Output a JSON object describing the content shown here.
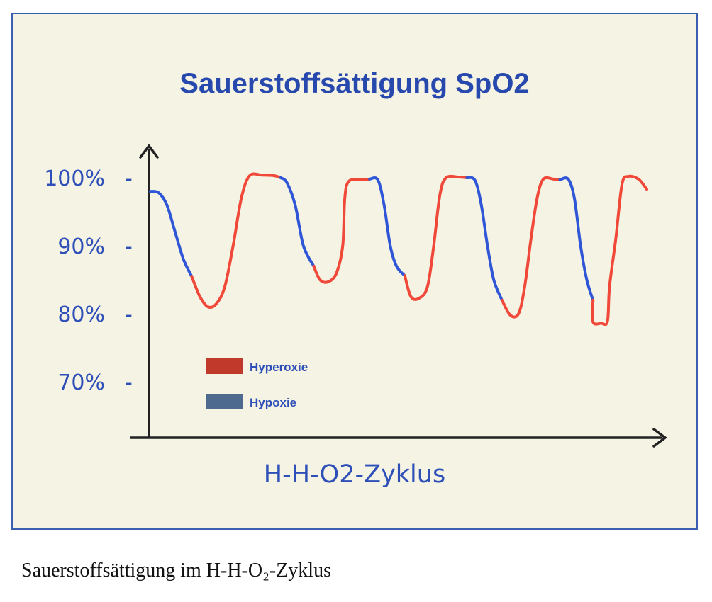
{
  "caption": "Sauerstoffsättigung im H-H-O₂-Zyklus",
  "colors": {
    "hyperoxie": "#f0493a",
    "hypoxie": "#2e56d6",
    "legend_hyperoxie": "#c0392b",
    "legend_hypoxie": "#4f6a8f",
    "axis": "#222222",
    "background": "#f5f3e4",
    "frame": "#3a5fb0"
  },
  "chart_data": {
    "type": "line",
    "title": "Sauerstoffsättigung SpO2",
    "xlabel": "H-H-O2-Zyklus",
    "ylabel": "",
    "ylim": [
      62,
      108
    ],
    "yticks": [
      {
        "value": 100,
        "label": "100%"
      },
      {
        "value": 90,
        "label": "90%"
      },
      {
        "value": 80,
        "label": "80%"
      },
      {
        "value": 70,
        "label": "70%"
      }
    ],
    "xlim": [
      0,
      24
    ],
    "grid": false,
    "legend_position": "lower-left",
    "legend": [
      {
        "name": "Hyperoxie",
        "color_key": "hyperoxie"
      },
      {
        "name": "Hypoxie",
        "color_key": "hypoxie"
      }
    ],
    "segments": [
      {
        "series": "Hypoxie",
        "points": [
          [
            0.0,
            98.0
          ],
          [
            0.4,
            97.8
          ],
          [
            0.8,
            96.0
          ],
          [
            1.2,
            92.0
          ],
          [
            1.6,
            88.0
          ],
          [
            2.0,
            85.5
          ]
        ]
      },
      {
        "series": "Hyperoxie",
        "points": [
          [
            2.0,
            85.5
          ],
          [
            2.4,
            82.5
          ],
          [
            2.8,
            81.0
          ],
          [
            3.2,
            81.5
          ],
          [
            3.6,
            84.0
          ],
          [
            4.0,
            90.0
          ],
          [
            4.4,
            97.0
          ],
          [
            4.8,
            100.3
          ],
          [
            5.4,
            100.4
          ],
          [
            6.0,
            100.3
          ],
          [
            6.3,
            100.0
          ]
        ]
      },
      {
        "series": "Hypoxie",
        "points": [
          [
            6.3,
            100.0
          ],
          [
            6.6,
            99.3
          ],
          [
            7.0,
            96.0
          ],
          [
            7.4,
            90.0
          ],
          [
            7.9,
            87.0
          ]
        ]
      },
      {
        "series": "Hyperoxie",
        "points": [
          [
            7.9,
            87.0
          ],
          [
            8.2,
            85.0
          ],
          [
            8.6,
            84.7
          ],
          [
            9.0,
            86.0
          ],
          [
            9.3,
            90.0
          ],
          [
            9.4,
            97.0
          ],
          [
            9.6,
            99.5
          ],
          [
            10.2,
            99.7
          ],
          [
            10.6,
            99.8
          ]
        ]
      },
      {
        "series": "Hypoxie",
        "points": [
          [
            10.6,
            99.8
          ],
          [
            11.0,
            99.7
          ],
          [
            11.3,
            96.0
          ],
          [
            11.6,
            90.0
          ],
          [
            11.9,
            87.0
          ],
          [
            12.3,
            85.6
          ]
        ]
      },
      {
        "series": "Hyperoxie",
        "points": [
          [
            12.3,
            85.6
          ],
          [
            12.6,
            82.5
          ],
          [
            13.0,
            82.3
          ],
          [
            13.4,
            84.0
          ],
          [
            13.7,
            90.0
          ],
          [
            14.0,
            97.5
          ],
          [
            14.3,
            100.0
          ],
          [
            14.9,
            100.1
          ],
          [
            15.3,
            100.0
          ]
        ]
      },
      {
        "series": "Hypoxie",
        "points": [
          [
            15.3,
            100.0
          ],
          [
            15.7,
            99.6
          ],
          [
            16.0,
            96.0
          ],
          [
            16.3,
            90.0
          ],
          [
            16.6,
            85.0
          ],
          [
            17.0,
            82.0
          ]
        ]
      },
      {
        "series": "Hyperoxie",
        "points": [
          [
            17.0,
            82.0
          ],
          [
            17.4,
            79.8
          ],
          [
            17.8,
            80.0
          ],
          [
            18.1,
            84.0
          ],
          [
            18.4,
            91.0
          ],
          [
            18.7,
            97.0
          ],
          [
            19.0,
            99.8
          ],
          [
            19.5,
            99.8
          ],
          [
            19.8,
            99.7
          ]
        ]
      },
      {
        "series": "Hypoxie",
        "points": [
          [
            19.8,
            99.7
          ],
          [
            20.2,
            99.8
          ],
          [
            20.5,
            97.0
          ],
          [
            20.8,
            90.0
          ],
          [
            21.1,
            85.0
          ],
          [
            21.4,
            82.0
          ]
        ]
      },
      {
        "series": "Hyperoxie",
        "points": [
          [
            21.4,
            82.0
          ],
          [
            21.4,
            78.8
          ],
          [
            21.8,
            78.6
          ],
          [
            22.1,
            78.9
          ],
          [
            22.2,
            84.0
          ],
          [
            22.5,
            91.0
          ],
          [
            22.8,
            99.0
          ],
          [
            23.1,
            100.2
          ],
          [
            23.6,
            99.8
          ],
          [
            24.0,
            98.3
          ]
        ]
      }
    ]
  }
}
